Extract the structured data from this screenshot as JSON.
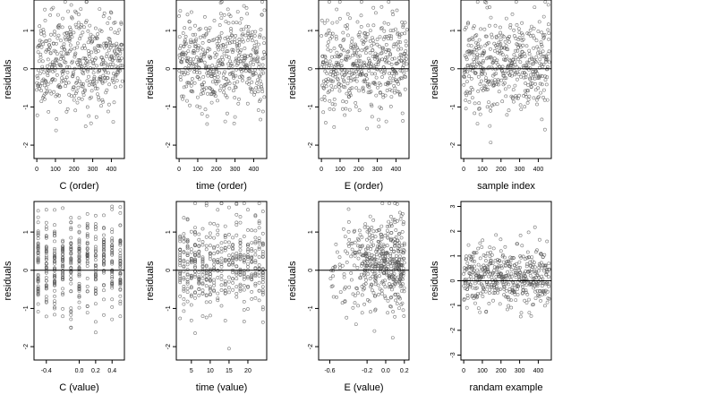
{
  "chart_data": [
    {
      "type": "scatter",
      "xlabel": "C (order)",
      "ylabel": "residuals",
      "xlim": [
        -15,
        470
      ],
      "ylim": [
        -2.35,
        1.8
      ],
      "xticks": [
        0,
        100,
        200,
        300,
        400
      ],
      "yticks": [
        -2,
        -1,
        0,
        1
      ],
      "hline": 0,
      "x_kind": "order",
      "n_points": 460,
      "seed": 11,
      "grid": false
    },
    {
      "type": "scatter",
      "xlabel": "time (order)",
      "ylabel": "residuals",
      "xlim": [
        -15,
        470
      ],
      "ylim": [
        -2.35,
        1.8
      ],
      "xticks": [
        0,
        100,
        200,
        300,
        400
      ],
      "yticks": [
        -2,
        -1,
        0,
        1
      ],
      "hline": 0,
      "x_kind": "order",
      "n_points": 460,
      "seed": 23,
      "grid": false
    },
    {
      "type": "scatter",
      "xlabel": "E (order)",
      "ylabel": "residuals",
      "xlim": [
        -15,
        470
      ],
      "ylim": [
        -2.35,
        1.8
      ],
      "xticks": [
        0,
        100,
        200,
        300,
        400
      ],
      "yticks": [
        -2,
        -1,
        0,
        1
      ],
      "hline": 0,
      "x_kind": "order",
      "n_points": 460,
      "seed": 37,
      "grid": false
    },
    {
      "type": "scatter",
      "xlabel": "sample index",
      "ylabel": "residuals",
      "xlim": [
        -15,
        470
      ],
      "ylim": [
        -2.35,
        1.8
      ],
      "xticks": [
        0,
        100,
        200,
        300,
        400
      ],
      "yticks": [
        -2,
        -1,
        0,
        1
      ],
      "hline": 0,
      "x_kind": "order",
      "n_points": 460,
      "seed": 41,
      "grid": false
    },
    {
      "type": "scatter",
      "xlabel": "C (value)",
      "ylabel": "residuals",
      "xlim": [
        -0.55,
        0.55
      ],
      "ylim": [
        -2.35,
        1.8
      ],
      "xticks": [
        -0.4,
        0.0,
        0.2,
        0.4
      ],
      "xtick_labels": [
        "-0.4",
        "0.0",
        "0.2",
        "0.4"
      ],
      "yticks": [
        -2,
        -1,
        0,
        1
      ],
      "hline": 0,
      "x_kind": "discrete",
      "x_levels": [
        -0.5,
        -0.4,
        -0.3,
        -0.2,
        -0.1,
        0.0,
        0.1,
        0.2,
        0.3,
        0.4,
        0.5
      ],
      "n_points": 460,
      "seed": 53,
      "grid": false
    },
    {
      "type": "scatter",
      "xlabel": "time (value)",
      "ylabel": "residuals",
      "xlim": [
        1,
        25
      ],
      "ylim": [
        -2.35,
        1.8
      ],
      "xticks": [
        5,
        10,
        15,
        20
      ],
      "yticks": [
        -2,
        -1,
        0,
        1
      ],
      "hline": 0,
      "x_kind": "discrete",
      "x_levels": [
        2,
        3,
        4,
        5,
        6,
        7,
        8,
        9,
        10,
        11,
        12,
        13,
        14,
        15,
        16,
        17,
        18,
        19,
        20,
        21,
        22,
        23,
        24
      ],
      "n_points": 460,
      "seed": 67,
      "grid": false
    },
    {
      "type": "scatter",
      "xlabel": "E (value)",
      "ylabel": "residuals",
      "xlim": [
        -0.72,
        0.25
      ],
      "ylim": [
        -2.35,
        1.8
      ],
      "xticks": [
        -0.6,
        -0.2,
        0.0,
        0.2
      ],
      "xtick_labels": [
        "-0.6",
        "-0.2",
        "0.0",
        "0.2"
      ],
      "yticks": [
        -2,
        -1,
        0,
        1
      ],
      "hline": 0,
      "x_kind": "skewed",
      "x_min": -0.68,
      "x_max": 0.2,
      "n_points": 460,
      "seed": 79,
      "grid": false
    },
    {
      "type": "scatter",
      "xlabel": "randam example",
      "ylabel": "residuals",
      "xlim": [
        -15,
        470
      ],
      "ylim": [
        -3.2,
        3.2
      ],
      "xticks": [
        0,
        100,
        200,
        300,
        400
      ],
      "yticks": [
        -3,
        -2,
        -1,
        0,
        1,
        2,
        3
      ],
      "hline": 0,
      "x_kind": "order",
      "n_points": 460,
      "seed": 97,
      "grid": false
    }
  ]
}
